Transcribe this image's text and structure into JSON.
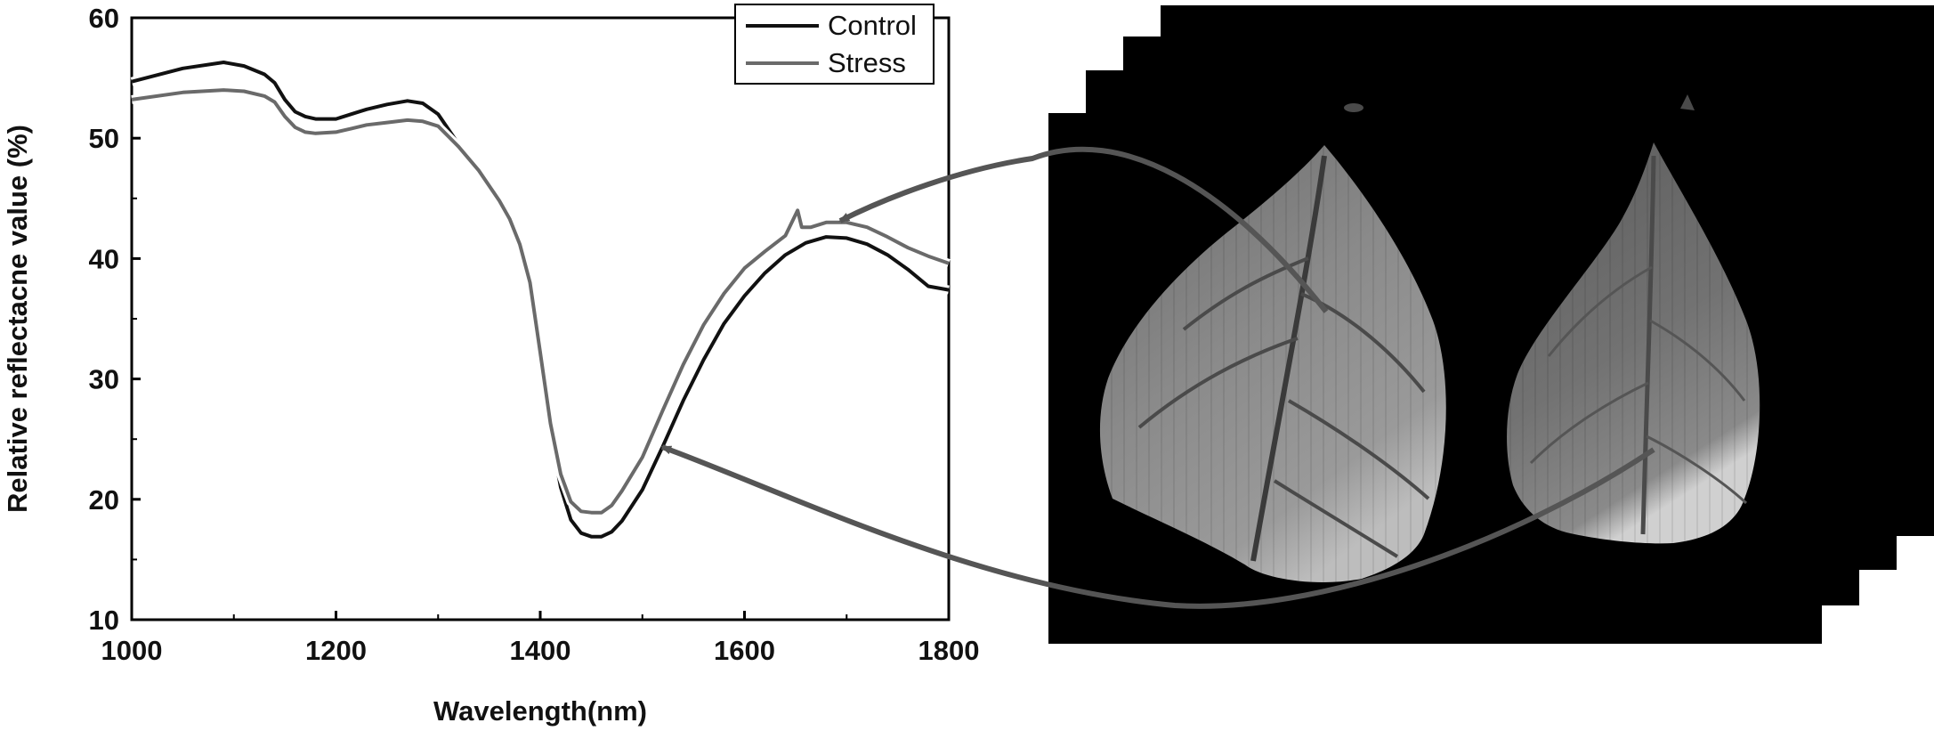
{
  "chart_data": {
    "type": "line",
    "title": "",
    "xlabel": "Wavelength(nm)",
    "ylabel": "Relative reflectacne value (%)",
    "xlim": [
      1000,
      1800
    ],
    "ylim": [
      10,
      60
    ],
    "x_ticks": [
      1000,
      1200,
      1400,
      1600,
      1800
    ],
    "y_ticks": [
      10,
      20,
      30,
      40,
      50,
      60
    ],
    "x_tick_labels": [
      "1000",
      "1200",
      "1400",
      "1600",
      "1800"
    ],
    "y_tick_labels": [
      "10",
      "20",
      "30",
      "40",
      "50",
      "60"
    ],
    "grid": false,
    "legend_position": "top-right",
    "series": [
      {
        "name": "Control",
        "color": "#111111",
        "x": [
          1000,
          1050,
          1090,
          1110,
          1130,
          1140,
          1150,
          1160,
          1170,
          1180,
          1200,
          1215,
          1230,
          1250,
          1270,
          1285,
          1300,
          1320,
          1340,
          1360,
          1370,
          1380,
          1390,
          1400,
          1410,
          1420,
          1430,
          1440,
          1450,
          1460,
          1470,
          1480,
          1500,
          1520,
          1540,
          1560,
          1580,
          1600,
          1620,
          1640,
          1660,
          1680,
          1700,
          1720,
          1740,
          1760,
          1780,
          1800
        ],
        "y": [
          54.7,
          55.8,
          56.3,
          56.0,
          55.3,
          54.6,
          53.2,
          52.2,
          51.8,
          51.6,
          51.6,
          52.0,
          52.4,
          52.8,
          53.1,
          52.9,
          52.0,
          49.5,
          47.2,
          44.8,
          43.2,
          41.0,
          37.5,
          31.5,
          25.5,
          21.0,
          18.3,
          17.2,
          16.9,
          16.9,
          17.3,
          18.2,
          20.8,
          24.4,
          28.2,
          31.6,
          34.6,
          36.9,
          38.8,
          40.3,
          41.3,
          41.8,
          41.7,
          41.2,
          40.3,
          39.1,
          37.7,
          37.4
        ]
      },
      {
        "name": "Stress",
        "color": "#6a6a6a",
        "x": [
          1000,
          1050,
          1090,
          1110,
          1130,
          1140,
          1150,
          1160,
          1170,
          1180,
          1200,
          1215,
          1230,
          1250,
          1270,
          1285,
          1300,
          1320,
          1340,
          1360,
          1370,
          1380,
          1390,
          1400,
          1410,
          1420,
          1430,
          1440,
          1450,
          1460,
          1470,
          1480,
          1500,
          1520,
          1540,
          1560,
          1580,
          1600,
          1620,
          1640,
          1648,
          1652,
          1656,
          1665,
          1680,
          1700,
          1720,
          1740,
          1760,
          1780,
          1800
        ],
        "y": [
          53.2,
          53.8,
          54.0,
          53.9,
          53.5,
          53.0,
          51.8,
          50.9,
          50.5,
          50.4,
          50.5,
          50.8,
          51.1,
          51.3,
          51.5,
          51.4,
          51.0,
          49.3,
          47.3,
          44.8,
          43.3,
          41.2,
          38.0,
          32.2,
          26.3,
          22.1,
          19.8,
          19.0,
          18.9,
          18.9,
          19.5,
          20.7,
          23.5,
          27.4,
          31.2,
          34.5,
          37.1,
          39.2,
          40.6,
          41.9,
          43.3,
          44.0,
          42.6,
          42.6,
          43.0,
          43.0,
          42.6,
          41.8,
          40.9,
          40.2,
          39.6
        ]
      }
    ]
  },
  "image_panel": {
    "description_label": "",
    "arrow_color": "#555555"
  }
}
